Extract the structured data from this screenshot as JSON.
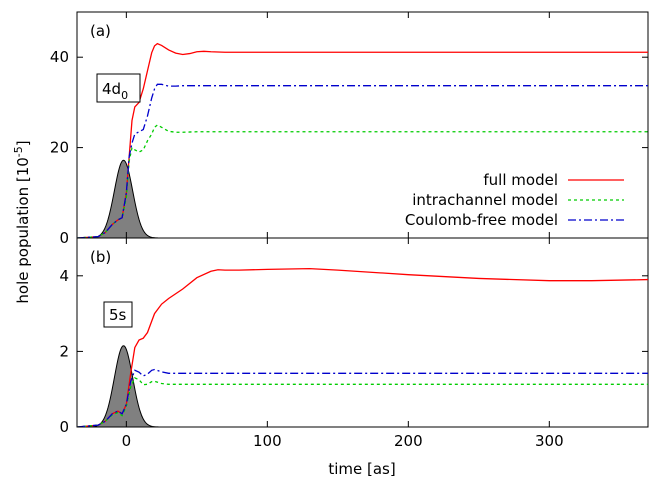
{
  "chart_data": [
    {
      "id": "a",
      "type": "line",
      "panel_tag": "(a)",
      "box_label": {
        "main": "4d",
        "sub": "0"
      },
      "xlim": [
        -35,
        370
      ],
      "ylim": [
        0,
        50
      ],
      "yticks": [
        0,
        20,
        40
      ],
      "grid": false,
      "legend_position": "center-right",
      "series": [
        {
          "name": "full model",
          "color": "#ff0000",
          "dash": "none",
          "x": [
            -35,
            -20,
            -15,
            -10,
            -6,
            -3,
            0,
            2,
            4,
            6,
            9,
            12,
            15,
            18,
            20,
            22,
            25,
            30,
            35,
            40,
            45,
            50,
            55,
            60,
            70,
            80,
            100,
            150,
            200,
            300,
            370
          ],
          "y": [
            0,
            0.3,
            1.2,
            3,
            4,
            4.5,
            10,
            18,
            26,
            29,
            30,
            33,
            37,
            41,
            42.5,
            43,
            42.6,
            41.6,
            40.9,
            40.6,
            40.8,
            41.2,
            41.3,
            41.2,
            41.1,
            41.1,
            41.1,
            41.1,
            41.1,
            41.1,
            41.1
          ]
        },
        {
          "name": "intrachannel model",
          "color": "#00cc00",
          "dash": "3,3",
          "x": [
            -35,
            -20,
            -15,
            -10,
            -6,
            -3,
            0,
            2,
            4,
            6,
            9,
            12,
            15,
            18,
            20,
            22,
            25,
            30,
            35,
            40,
            50,
            60,
            80,
            100,
            150,
            200,
            300,
            370
          ],
          "y": [
            0,
            0.3,
            1.2,
            3,
            4,
            4.5,
            9,
            17,
            20,
            19.5,
            19,
            19.5,
            21.5,
            23,
            24.5,
            25,
            24.5,
            23.6,
            23.4,
            23.4,
            23.5,
            23.5,
            23.5,
            23.5,
            23.5,
            23.5,
            23.5,
            23.5
          ]
        },
        {
          "name": "Coulomb-free model",
          "color": "#0000cc",
          "dash": "8,3,2,3",
          "x": [
            -35,
            -20,
            -15,
            -10,
            -6,
            -3,
            0,
            2,
            4,
            6,
            9,
            12,
            15,
            18,
            20,
            22,
            25,
            30,
            35,
            40,
            50,
            60,
            80,
            100,
            150,
            200,
            300,
            370
          ],
          "y": [
            0,
            0.3,
            1.2,
            3,
            4,
            4.5,
            10,
            18,
            21,
            23,
            23.5,
            24,
            27,
            31,
            33,
            34,
            34,
            33.6,
            33.6,
            33.7,
            33.7,
            33.7,
            33.7,
            33.7,
            33.7,
            33.7,
            33.7,
            33.7
          ]
        }
      ],
      "pulse": {
        "center": -2,
        "width": 6.5,
        "peak": 17.2,
        "fill": "#808080"
      }
    },
    {
      "id": "b",
      "type": "line",
      "panel_tag": "(b)",
      "box_label": {
        "main": "5s",
        "sub": ""
      },
      "xlim": [
        -35,
        370
      ],
      "ylim": [
        0,
        5
      ],
      "yticks": [
        0,
        2,
        4
      ],
      "xticks": [
        0,
        100,
        200,
        300
      ],
      "xlabel": "time [as]",
      "grid": false,
      "series": [
        {
          "name": "full model",
          "color": "#ff0000",
          "dash": "none",
          "x": [
            -35,
            -20,
            -15,
            -10,
            -6,
            -3,
            0,
            3,
            6,
            9,
            12,
            15,
            18,
            20,
            25,
            30,
            40,
            50,
            60,
            65,
            70,
            80,
            100,
            130,
            150,
            200,
            250,
            300,
            330,
            370
          ],
          "y": [
            0,
            0.05,
            0.15,
            0.35,
            0.42,
            0.35,
            0.6,
            1.4,
            2.1,
            2.3,
            2.35,
            2.5,
            2.8,
            3.0,
            3.25,
            3.4,
            3.65,
            3.95,
            4.12,
            4.16,
            4.15,
            4.15,
            4.17,
            4.19,
            4.15,
            4.03,
            3.93,
            3.87,
            3.87,
            3.9
          ]
        },
        {
          "name": "intrachannel model",
          "color": "#00cc00",
          "dash": "3,3",
          "x": [
            -35,
            -20,
            -15,
            -10,
            -6,
            -3,
            0,
            3,
            6,
            9,
            12,
            15,
            18,
            20,
            25,
            30,
            40,
            60,
            100,
            150,
            200,
            300,
            370
          ],
          "y": [
            0,
            0.05,
            0.15,
            0.32,
            0.38,
            0.3,
            0.55,
            1.05,
            1.3,
            1.25,
            1.12,
            1.13,
            1.2,
            1.21,
            1.15,
            1.13,
            1.13,
            1.13,
            1.13,
            1.13,
            1.13,
            1.13,
            1.13
          ]
        },
        {
          "name": "Coulomb-free model",
          "color": "#0000cc",
          "dash": "8,3,2,3",
          "x": [
            -35,
            -20,
            -15,
            -10,
            -6,
            -3,
            0,
            3,
            6,
            9,
            12,
            15,
            18,
            20,
            25,
            30,
            40,
            60,
            100,
            150,
            200,
            300,
            370
          ],
          "y": [
            0,
            0.05,
            0.15,
            0.35,
            0.42,
            0.35,
            0.6,
            1.2,
            1.5,
            1.45,
            1.35,
            1.4,
            1.5,
            1.52,
            1.46,
            1.42,
            1.42,
            1.42,
            1.42,
            1.42,
            1.42,
            1.42,
            1.42
          ]
        }
      ],
      "pulse": {
        "center": -2,
        "width": 6.5,
        "peak": 2.15,
        "fill": "#808080"
      }
    }
  ],
  "shared": {
    "ylabel_main": "hole population [10",
    "ylabel_exp": "-5",
    "ylabel_end": "]"
  }
}
